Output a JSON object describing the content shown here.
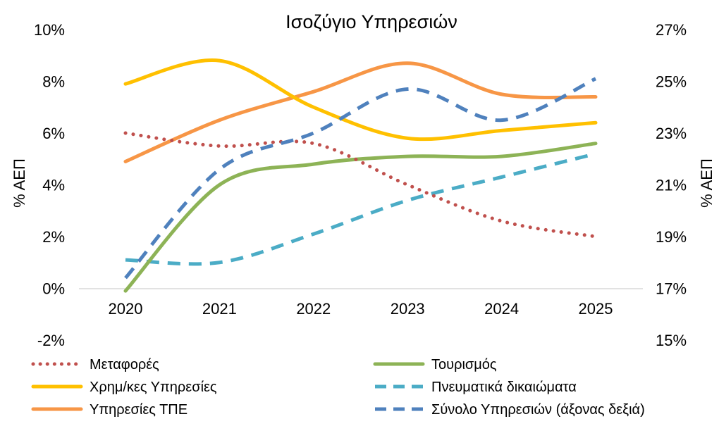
{
  "chart_data": {
    "type": "line",
    "title": "Ισοζύγιο Υπηρεσιών",
    "categories": [
      "2020",
      "2021",
      "2022",
      "2023",
      "2024",
      "2025"
    ],
    "ylabel_left": "% ΑΕΠ",
    "ylabel_right": "% ΑΕΠ",
    "ylim_left": [
      -2,
      10
    ],
    "ylim_right": [
      15,
      27
    ],
    "yticks_left": [
      "-2%",
      "0%",
      "2%",
      "4%",
      "6%",
      "8%",
      "10%"
    ],
    "yticks_right": [
      "15%",
      "17%",
      "19%",
      "21%",
      "23%",
      "25%",
      "27%"
    ],
    "legend_position": "bottom",
    "series": [
      {
        "name": "Μεταφορές",
        "axis": "left",
        "style": "dotted",
        "color": "#c0504d",
        "values": [
          6.0,
          5.5,
          5.6,
          4.0,
          2.6,
          2.0
        ]
      },
      {
        "name": "Τουρισμός",
        "axis": "left",
        "style": "solid",
        "color": "#8db356",
        "values": [
          -0.1,
          4.0,
          4.8,
          5.1,
          5.1,
          5.6
        ]
      },
      {
        "name": "Χρημ/κες Υπηρεσίες",
        "axis": "left",
        "style": "solid",
        "color": "#ffc000",
        "values": [
          7.9,
          8.8,
          7.0,
          5.8,
          6.1,
          6.4
        ]
      },
      {
        "name": "Πνευματικά δικαιώματα",
        "axis": "left",
        "style": "dashed",
        "color": "#4bacc6",
        "values": [
          1.1,
          1.0,
          2.1,
          3.4,
          4.3,
          5.2
        ]
      },
      {
        "name": "Υπηρεσίες ΤΠΕ",
        "axis": "left",
        "style": "solid",
        "color": "#f79646",
        "values": [
          4.9,
          6.5,
          7.6,
          8.7,
          7.5,
          7.4
        ]
      },
      {
        "name": "Σύνολο Υπηρεσιών (άξονας δεξιά)",
        "axis": "right",
        "style": "dashed",
        "color": "#4f81bd",
        "values": [
          17.4,
          21.6,
          23.0,
          24.7,
          23.5,
          25.1
        ]
      }
    ]
  }
}
